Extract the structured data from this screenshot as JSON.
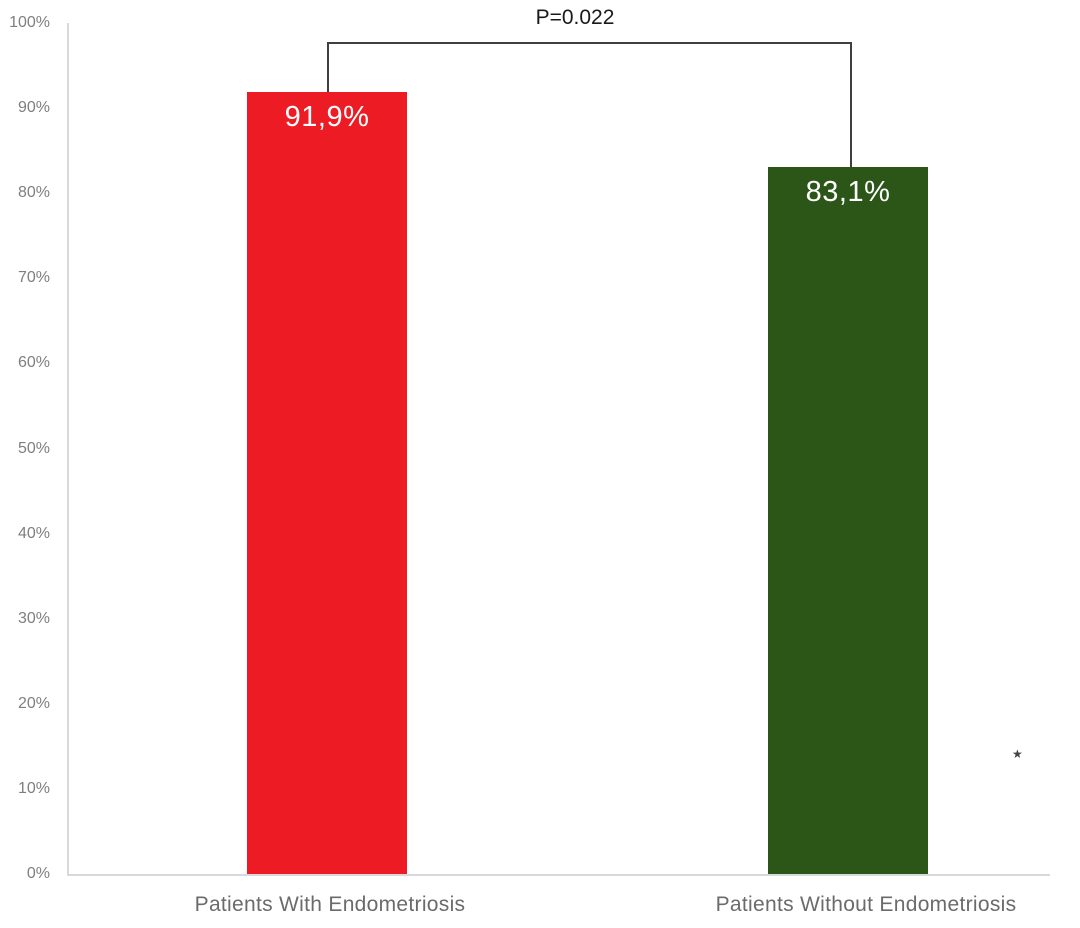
{
  "chart_data": {
    "type": "bar",
    "categories": [
      "Patients With Endometriosis",
      "Patients Without Endometriosis"
    ],
    "values": [
      91.9,
      83.1
    ],
    "value_labels": [
      "91,9%",
      "83,1%"
    ],
    "bar_colors": [
      "#ed1c24",
      "#2b5617"
    ],
    "value_label_color": "#ffffff",
    "ylim": [
      0,
      100
    ],
    "y_tick_step": 10,
    "y_tick_labels": [
      "0%",
      "10%",
      "20%",
      "30%",
      "40%",
      "50%",
      "60%",
      "70%",
      "80%",
      "90%",
      "100%"
    ],
    "grid": "off",
    "legend": "none",
    "significance": {
      "label": "P=0.022"
    },
    "annotations": [
      {
        "symbol": "★"
      }
    ],
    "axis_color": "#d9d9d9",
    "tick_label_color": "#7f7f7f",
    "category_label_color": "#6b6b6b",
    "bracket_color": "#3f3f3f"
  }
}
